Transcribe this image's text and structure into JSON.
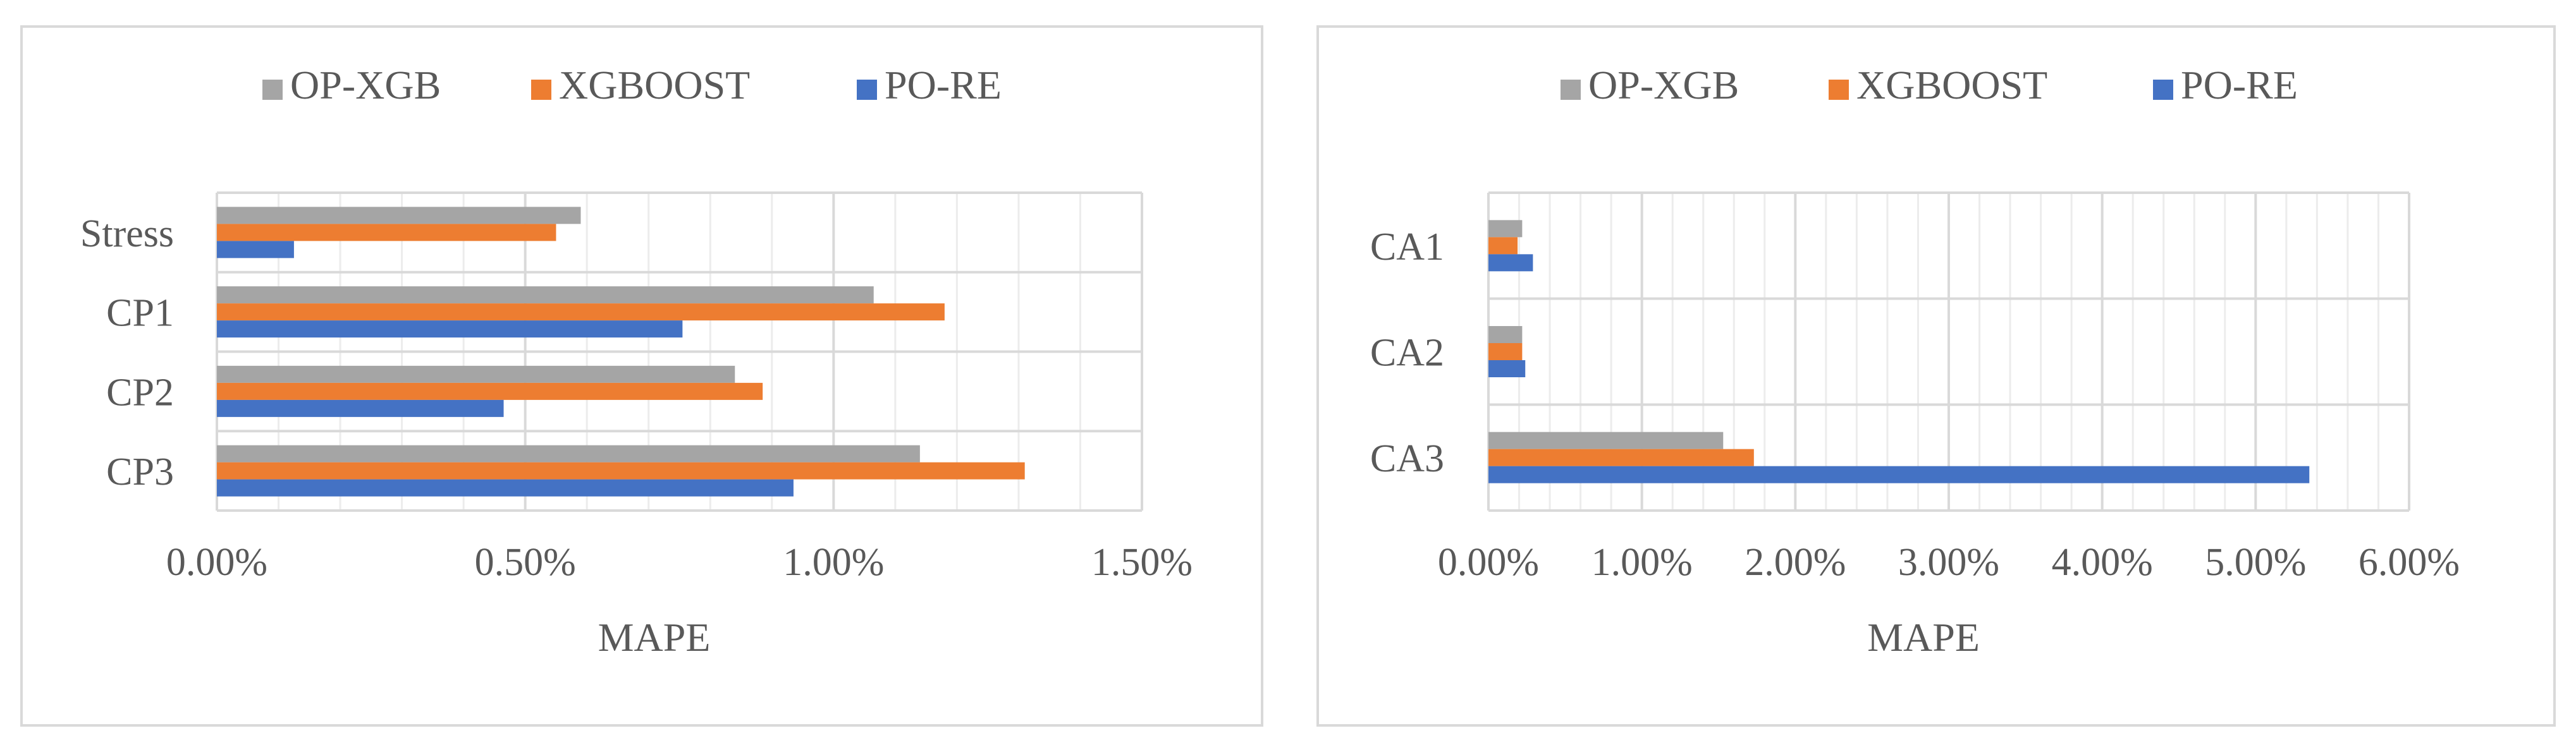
{
  "colors": {
    "op_xgb": "#a5a5a5",
    "xgboost": "#ed7d31",
    "po_re": "#4472c4",
    "grid": "#d9d9d9",
    "text": "#595959"
  },
  "chart_data": [
    {
      "type": "bar",
      "orientation": "horizontal",
      "categories": [
        "Stress",
        "CP1",
        "CP2",
        "CP3"
      ],
      "series": [
        {
          "name": "OP-XGB",
          "values": [
            0.59,
            1.065,
            0.84,
            1.14
          ]
        },
        {
          "name": "XGBOOST",
          "values": [
            0.55,
            1.18,
            0.885,
            1.31
          ]
        },
        {
          "name": "PO-RE",
          "values": [
            0.125,
            0.755,
            0.465,
            0.935
          ]
        }
      ],
      "value_unit": "%",
      "xlabel": "MAPE",
      "xlim": [
        0,
        1.5
      ],
      "major_ticks": [
        0,
        0.5,
        1.0,
        1.5
      ],
      "tick_labels": [
        "0.00%",
        "0.50%",
        "1.00%",
        "1.50%"
      ],
      "minor_gridlines": true,
      "legend_position": "top"
    },
    {
      "type": "bar",
      "orientation": "horizontal",
      "categories": [
        "CA1",
        "CA2",
        "CA3"
      ],
      "series": [
        {
          "name": "OP-XGB",
          "values": [
            0.22,
            0.22,
            1.53
          ]
        },
        {
          "name": "XGBOOST",
          "values": [
            0.19,
            0.22,
            1.73
          ]
        },
        {
          "name": "PO-RE",
          "values": [
            0.29,
            0.24,
            5.35
          ]
        }
      ],
      "value_unit": "%",
      "xlabel": "MAPE",
      "xlim": [
        0,
        6
      ],
      "major_ticks": [
        0,
        1,
        2,
        3,
        4,
        5,
        6
      ],
      "tick_labels": [
        "0.00%",
        "1.00%",
        "2.00%",
        "3.00%",
        "4.00%",
        "5.00%",
        "6.00%"
      ],
      "minor_gridlines": true,
      "legend_position": "top"
    }
  ]
}
